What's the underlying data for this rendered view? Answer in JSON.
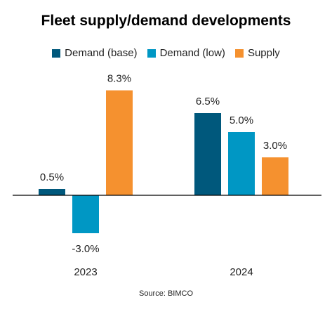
{
  "chart_data": {
    "type": "bar",
    "title": "Fleet supply/demand developments",
    "categories": [
      "2023",
      "2024"
    ],
    "series": [
      {
        "name": "Demand (base)",
        "values": [
          0.5,
          6.5
        ],
        "color": "#00587c"
      },
      {
        "name": "Demand (low)",
        "values": [
          -3.0,
          5.0
        ],
        "color": "#0097c4"
      },
      {
        "name": "Supply",
        "values": [
          8.3,
          3.0
        ],
        "color": "#f5912f"
      }
    ],
    "data_labels": [
      [
        "0.5%",
        "-3.0%",
        "8.3%"
      ],
      [
        "6.5%",
        "5.0%",
        "3.0%"
      ]
    ],
    "unit": "%",
    "legend_position": "top",
    "grid": false,
    "xlabel": "",
    "ylabel": "",
    "source": "Source: BIMCO"
  }
}
